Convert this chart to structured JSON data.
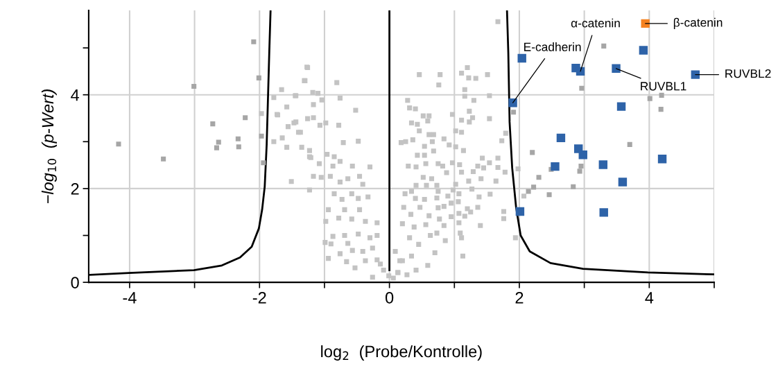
{
  "chart_data": {
    "type": "scatter",
    "xlabel": "log$_{2}$  (Probe/Kontrolle)",
    "ylabel": "−log$_{10}$  (p-Wert)",
    "xlim": [
      -4.63,
      5
    ],
    "ylim": [
      0,
      5.8
    ],
    "xticks": [
      -4,
      {
        "value": -3,
        "label": null
      },
      -2,
      {
        "value": -1,
        "label": null
      },
      0,
      {
        "value": 1,
        "label": null
      },
      2,
      {
        "value": 3,
        "label": null
      },
      4,
      {
        "value": 5,
        "label": null
      }
    ],
    "yticks": [
      0,
      {
        "value": 1,
        "label": null
      },
      2,
      {
        "value": 3,
        "label": null
      },
      4,
      {
        "value": 5,
        "label": null
      }
    ],
    "grid": true,
    "marker": "square",
    "series": [
      {
        "color": "#c3c3c3",
        "x": [
          -1.51,
          -1.27,
          -1.31,
          -1.66,
          -1.78,
          -1.45,
          -1.58,
          -1.97,
          -1.73,
          -1.47,
          -1.56,
          -1.4,
          -1.65,
          -1.78,
          -1.58,
          -1.35,
          -1.23,
          -1.23,
          -1.26,
          -1.3,
          -0.81,
          -0.76,
          -0.52,
          -1.18,
          -1.1,
          -1.04,
          -1.44,
          -1.17,
          -1.26,
          -1.17,
          -1.72,
          -1.44,
          -1.37,
          -1.07,
          -0.98,
          -0.78,
          -0.71,
          -0.48,
          -1.23,
          -1.21,
          -1.08,
          -0.96,
          -0.85,
          -0.87,
          -0.76,
          -0.57,
          -0.3,
          -1.17,
          -1.05,
          -0.91,
          -0.76,
          -0.64,
          -0.46,
          -0.41,
          -0.85,
          -0.73,
          -0.58,
          -0.48,
          -0.33,
          -0.94,
          -0.69,
          -0.58,
          -0.46,
          -0.37,
          -0.19,
          -0.98,
          -0.78,
          -0.87,
          -0.69,
          -0.99,
          -0.9,
          -0.48,
          -0.3,
          -0.19,
          -0.64,
          -0.57,
          -0.41,
          -0.26,
          -0.76,
          -0.94,
          -0.66,
          -0.53,
          -0.37,
          -0.19,
          -0.26,
          -0.09,
          -0.14,
          -0.01,
          0.13,
          0.16,
          0.18,
          1.67,
          0.46,
          0.78,
          0.76,
          1.2,
          1.11,
          1.22,
          1.33,
          1.51,
          1.16,
          1.16,
          1.3,
          1.54,
          0.28,
          0.31,
          0.4,
          0.52,
          0.61,
          0.59,
          0.34,
          0.43,
          0.97,
          1.23,
          1.28,
          1.23,
          1.11,
          1.54,
          1.79,
          1.73,
          0.46,
          0.61,
          0.68,
          0.25,
          0.36,
          0.54,
          0.66,
          0.68,
          0.84,
          0.92,
          1.02,
          1.11,
          1.02,
          1.14,
          0.43,
          0.54,
          0.29,
          0.41,
          0.56,
          0.75,
          0.82,
          0.97,
          1.08,
          0.88,
          1.11,
          1.43,
          1.36,
          1.29,
          1.45,
          1.54,
          1.67,
          1.67,
          1.78,
          1.98,
          1.64,
          1.41,
          1.22,
          0.52,
          0.65,
          0.41,
          0.57,
          0.73,
          1.02,
          0.34,
          0.24,
          0.75,
          0.9,
          0.98,
          1.07,
          1.27,
          1.55,
          1.38,
          2.07,
          0.4,
          0.54,
          0.73,
          0.95,
          1.06,
          1.2,
          1.36,
          0.22,
          0.33,
          0.47,
          0.61,
          0.75,
          0.84,
          0.95,
          1.07,
          1.16,
          1.25,
          1.76,
          1.76,
          1.07,
          0.77,
          1.4,
          1.94,
          0.2,
          0.38,
          0.56,
          0.84,
          0.63,
          0.73,
          1.09,
          1.11,
          0.86,
          0.31,
          0.45,
          0.7,
          1.13,
          0.59,
          0.41,
          0.2,
          0.13,
          0.27,
          0.06,
          0.34,
          0.09
        ],
        "values": [
          2.15,
          4.59,
          4.3,
          4.11,
          3.94,
          3.98,
          3.74,
          3.6,
          3.58,
          3.4,
          3.32,
          3.2,
          3.08,
          3.0,
          2.88,
          2.88,
          2.68,
          1.97,
          4.58,
          4.3,
          4.26,
          3.93,
          3.67,
          4.05,
          4.03,
          3.89,
          3.98,
          3.79,
          3.49,
          3.51,
          3.57,
          3.42,
          3.2,
          3.35,
          3.4,
          3.35,
          2.98,
          3.01,
          2.81,
          2.66,
          2.53,
          2.73,
          2.68,
          2.48,
          2.58,
          2.48,
          2.46,
          2.26,
          2.24,
          2.26,
          2.14,
          2.21,
          2.26,
          2.09,
          1.89,
          1.77,
          1.89,
          1.79,
          1.82,
          1.55,
          1.55,
          1.35,
          1.55,
          1.3,
          1.27,
          1.3,
          1.37,
          0.98,
          1.0,
          0.85,
          0.82,
          1.03,
          0.95,
          1.0,
          0.83,
          0.68,
          0.66,
          0.73,
          0.61,
          0.51,
          0.44,
          0.31,
          0.46,
          0.48,
          0.11,
          0.26,
          0.39,
          0.14,
          0.21,
          0.46,
          2.98,
          5.56,
          4.43,
          4.43,
          4.21,
          4.58,
          4.46,
          4.36,
          4.35,
          4.43,
          4.11,
          3.97,
          3.88,
          3.98,
          3.88,
          3.72,
          3.7,
          3.55,
          3.55,
          3.44,
          3.4,
          3.37,
          3.58,
          3.65,
          3.51,
          3.42,
          3.46,
          3.49,
          3.18,
          3.02,
          3.23,
          3.15,
          3.15,
          3.0,
          3.04,
          2.9,
          3.0,
          2.8,
          3.06,
          2.93,
          3.23,
          3.2,
          2.89,
          2.81,
          2.71,
          2.71,
          2.48,
          2.46,
          2.53,
          2.53,
          2.48,
          2.55,
          2.51,
          2.34,
          2.35,
          2.65,
          2.48,
          2.36,
          2.44,
          2.55,
          2.65,
          2.45,
          2.35,
          2.42,
          2.16,
          2.21,
          2.16,
          2.24,
          2.21,
          2.07,
          2.07,
          2.07,
          2.09,
          1.94,
          1.89,
          1.94,
          1.84,
          1.97,
          1.89,
          1.99,
          1.88,
          1.82,
          1.84,
          1.79,
          1.77,
          1.8,
          1.69,
          1.72,
          1.57,
          1.6,
          1.6,
          1.45,
          1.6,
          1.42,
          1.59,
          1.62,
          1.4,
          1.47,
          1.41,
          1.5,
          1.51,
          1.36,
          1.27,
          1.35,
          1.21,
          0.95,
          1.25,
          1.18,
          1.23,
          1.21,
          1.0,
          1.05,
          1.05,
          0.95,
          0.89,
          0.95,
          0.81,
          0.63,
          0.56,
          0.36,
          0.26,
          0.46,
          0.21,
          0.16,
          0.09,
          0.56,
          0.66
        ]
      },
      {
        "color": "#a6a6a6",
        "x": [
          -2.09,
          -2.01,
          -3.01,
          -4.17,
          -3.48,
          -2.72,
          -2.63,
          -2.66,
          -2.33,
          -2.32,
          -2.22,
          -1.97,
          -1.94,
          3.3,
          2.96,
          4.01,
          4.19,
          4.18,
          1.91,
          3.7,
          2.2,
          2.3,
          2.22,
          2.14,
          2.46,
          2.49,
          2.95,
          2.93,
          2.83
        ],
        "values": [
          5.13,
          4.36,
          4.18,
          2.95,
          2.63,
          3.38,
          2.99,
          2.87,
          3.06,
          2.89,
          3.51,
          3.12,
          2.55,
          5.04,
          4.14,
          3.92,
          3.99,
          3.69,
          3.63,
          2.94,
          2.77,
          2.24,
          2.03,
          1.94,
          1.87,
          2.41,
          2.48,
          2.37,
          2.04
        ]
      },
      {
        "color": "#2e63a8",
        "x": [
          2.04,
          1.9,
          2.87,
          2.94,
          3.49,
          3.91,
          4.71,
          3.57,
          2.64,
          2.91,
          2.98,
          2.55,
          3.29,
          4.2,
          3.59,
          2.01,
          3.3
        ],
        "values": [
          4.78,
          3.83,
          4.57,
          4.5,
          4.56,
          4.95,
          4.43,
          3.75,
          3.08,
          2.85,
          2.72,
          2.47,
          2.51,
          2.63,
          2.14,
          1.51,
          1.49
        ]
      },
      {
        "color": "#f58220",
        "x": [
          3.94
        ],
        "values": [
          5.52
        ]
      },
      {
        "type": "line",
        "marker": "none",
        "color": "#000000",
        "x": [
          -4.61,
          -4.01,
          -3.01,
          -2.58,
          -2.3,
          -2.12,
          -2.01,
          -1.96,
          -1.92,
          -1.89,
          -1.87,
          -1.85,
          -1.83
        ],
        "values": [
          0.16,
          0.2,
          0.26,
          0.36,
          0.53,
          0.76,
          1.15,
          1.55,
          2.04,
          2.93,
          3.92,
          4.9,
          5.8
        ]
      },
      {
        "type": "line",
        "marker": "none",
        "color": "#000000",
        "x": [
          0.0,
          0.0
        ],
        "values": [
          5.8,
          0.26
        ]
      },
      {
        "type": "line",
        "marker": "none",
        "color": "#000000",
        "x": [
          1.81,
          1.83,
          1.85,
          1.89,
          1.95,
          2.02,
          2.16,
          2.48,
          2.98,
          3.98,
          4.99
        ],
        "values": [
          5.8,
          4.9,
          3.42,
          2.44,
          1.6,
          1.0,
          0.66,
          0.41,
          0.29,
          0.21,
          0.17
        ]
      }
    ],
    "annotations": [
      {
        "text": "E-cadherin",
        "x": 1.9,
        "y": 3.83
      },
      {
        "text": "α-catenin",
        "x": 2.94,
        "y": 4.5
      },
      {
        "text": "β-catenin",
        "x": 3.94,
        "y": 5.52
      },
      {
        "text": "RUVBL1",
        "x": 3.49,
        "y": 4.56
      },
      {
        "text": "RUVBL2",
        "x": 4.71,
        "y": 4.43
      }
    ]
  }
}
